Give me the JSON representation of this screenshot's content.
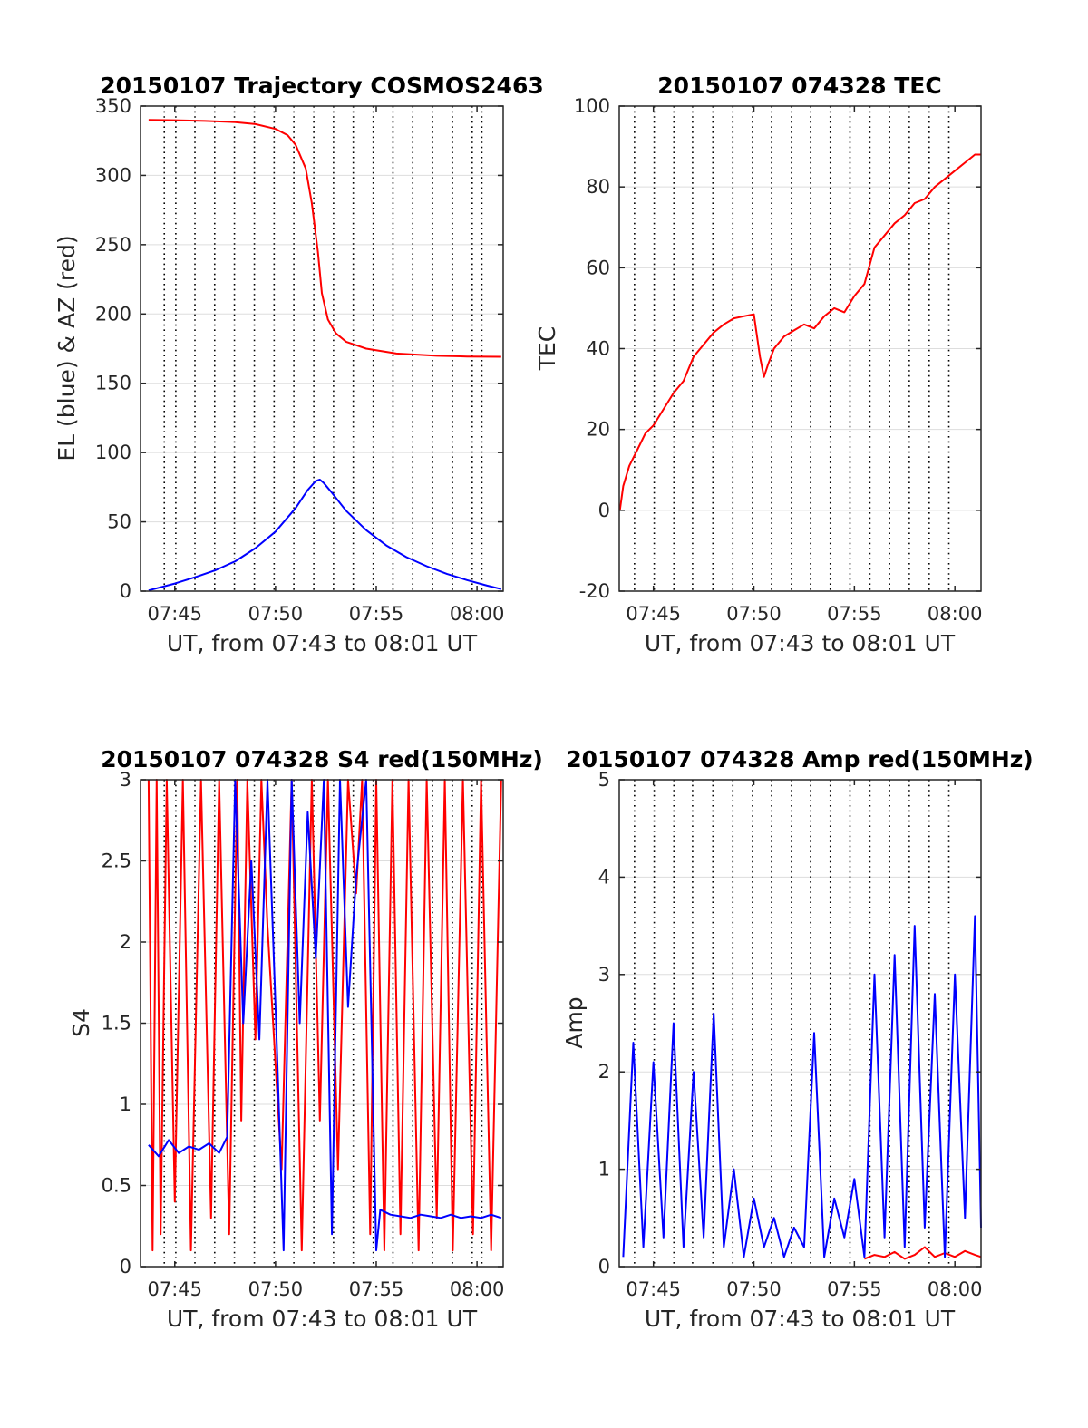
{
  "colors": {
    "red": "#ff0000",
    "blue": "#0000ff",
    "axis": "#262626",
    "grid": "#dddddd"
  },
  "chart_data": [
    {
      "type": "line",
      "title": "20150107 Trajectory COSMOS2463",
      "xlabel": "UT, from 07:43 to 08:01 UT",
      "ylabel": "EL (blue) & AZ (red)",
      "x_unit": "minutes after 07:43 UT",
      "xlim": [
        0.3,
        18.3
      ],
      "ylim": [
        0,
        350
      ],
      "x_ticks": [
        {
          "x": 2,
          "label": "07:45"
        },
        {
          "x": 7,
          "label": "07:50"
        },
        {
          "x": 12,
          "label": "07:55"
        },
        {
          "x": 17,
          "label": "08:00"
        }
      ],
      "y_ticks": [
        0,
        50,
        100,
        150,
        200,
        250,
        300,
        350
      ],
      "y_tick_labels": [
        "0",
        "50",
        "100",
        "150",
        "200",
        "250",
        "300",
        "350"
      ],
      "vlines": [
        1.48,
        2.05,
        3,
        3.98,
        4.96,
        5.95,
        6.93,
        7.91,
        8.9,
        9.88,
        10.86,
        11.85,
        12.83,
        13.81,
        14.79,
        15.78,
        16.76,
        17.24
      ],
      "grid": true,
      "series": [
        {
          "color": "red",
          "x": [
            0.7,
            2,
            3.5,
            5,
            6,
            7,
            7.6,
            8.0,
            8.5,
            8.8,
            9.1,
            9.3,
            9.6,
            10,
            10.5,
            11.5,
            13,
            15,
            16.5,
            18.2
          ],
          "y": [
            340,
            339.8,
            339.3,
            338.4,
            337,
            333.5,
            329,
            322,
            305,
            280,
            245,
            215,
            196,
            186,
            180,
            175,
            171.5,
            169.8,
            169.3,
            169.1
          ]
        },
        {
          "color": "blue",
          "x": [
            0.7,
            2,
            3,
            4,
            5,
            6,
            7,
            8,
            8.6,
            9.0,
            9.2,
            9.4,
            9.8,
            10.5,
            11.5,
            12.5,
            13.5,
            14.5,
            15.5,
            16.5,
            17.5,
            18.2
          ],
          "y": [
            0.5,
            5.5,
            10,
            15,
            21.5,
            31,
            43,
            60,
            73,
            79.5,
            80.5,
            78,
            71,
            58,
            44,
            33,
            24.5,
            18,
            12.5,
            8,
            4,
            1.5
          ]
        }
      ]
    },
    {
      "type": "line",
      "title": "20150107 074328 TEC",
      "xlabel": "UT, from 07:43 to 08:01 UT",
      "ylabel": "TEC",
      "x_unit": "minutes after 07:43 UT",
      "xlim": [
        0.3,
        18.3
      ],
      "ylim": [
        -20,
        100
      ],
      "x_ticks": [
        {
          "x": 2,
          "label": "07:45"
        },
        {
          "x": 7,
          "label": "07:50"
        },
        {
          "x": 12,
          "label": "07:55"
        },
        {
          "x": 17,
          "label": "08:00"
        }
      ],
      "y_ticks": [
        -20,
        0,
        20,
        40,
        60,
        80,
        100
      ],
      "y_tick_labels": [
        "-20",
        "0",
        "20",
        "40",
        "60",
        "80",
        "100"
      ],
      "vlines": [
        1.06,
        2.04,
        3.02,
        3.95,
        4.96,
        5.95,
        6.93,
        7.88,
        8.87,
        9.82,
        10.8,
        11.78,
        12.77,
        13.75,
        14.73,
        15.72,
        16.7
      ],
      "grid": true,
      "series": [
        {
          "color": "red",
          "x": [
            0.33,
            0.5,
            0.8,
            1.2,
            1.6,
            2.0,
            2.5,
            3.0,
            3.5,
            4.0,
            4.5,
            5.0,
            5.5,
            6.0,
            6.5,
            7.0,
            7.1,
            7.3,
            7.5,
            7.7,
            8.0,
            8.5,
            9.0,
            9.5,
            10.0,
            10.5,
            11.0,
            11.5,
            12.0,
            12.5,
            13.0,
            13.5,
            14.0,
            14.5,
            15.0,
            15.5,
            16.0,
            16.5,
            17.0,
            17.5,
            18.0,
            18.3
          ],
          "y": [
            0,
            6,
            11,
            15,
            19,
            21,
            25,
            29,
            32,
            38,
            41,
            44,
            46,
            47.5,
            48,
            48.5,
            45,
            38,
            33,
            36,
            40,
            43,
            44.5,
            46,
            45,
            48,
            50,
            49,
            53,
            56,
            65,
            68,
            71,
            73,
            76,
            77,
            80,
            82,
            84,
            86,
            88,
            88
          ]
        }
      ]
    },
    {
      "type": "line",
      "title": "20150107 074328 S4 red(150MHz)",
      "xlabel": "UT, from 07:43 to 08:01 UT",
      "ylabel": "S4",
      "x_unit": "minutes after 07:43 UT",
      "xlim": [
        0.3,
        18.3
      ],
      "ylim": [
        0,
        3
      ],
      "x_ticks": [
        {
          "x": 2,
          "label": "07:45"
        },
        {
          "x": 7,
          "label": "07:50"
        },
        {
          "x": 12,
          "label": "07:55"
        },
        {
          "x": 17,
          "label": "08:00"
        }
      ],
      "y_ticks": [
        0,
        0.5,
        1,
        1.5,
        2,
        2.5,
        3
      ],
      "y_tick_labels": [
        "0",
        "0.5",
        "1",
        "1.5",
        "2",
        "2.5",
        "3"
      ],
      "vlines": [
        1.48,
        2.05,
        3,
        3.98,
        4.96,
        5.95,
        6.93,
        7.91,
        8.9,
        9.88,
        10.86,
        11.85,
        12.83,
        13.81,
        14.79,
        15.78,
        16.76,
        17.24
      ],
      "grid": true,
      "series": [
        {
          "color": "red",
          "x": [
            0.7,
            0.9,
            1.1,
            1.3,
            1.6,
            2.0,
            2.4,
            2.8,
            3.3,
            3.8,
            4.2,
            4.7,
            5.1,
            5.3,
            5.6,
            6.0,
            6.3,
            6.6,
            7.3,
            7.8,
            8.3,
            8.8,
            9.2,
            9.6,
            10.1,
            10.6,
            11.0,
            11.3,
            11.7,
            12.0,
            12.4,
            12.8,
            13.2,
            13.6,
            14.1,
            14.5,
            15.0,
            15.4,
            15.8,
            16.3,
            16.8,
            17.2,
            17.7,
            18.2
          ],
          "y": [
            3,
            0.1,
            3,
            0.2,
            3,
            0.4,
            3,
            0.1,
            3,
            0.3,
            3,
            0.2,
            3,
            0.9,
            3,
            1.4,
            3,
            2.1,
            0.6,
            3,
            0.1,
            3,
            0.9,
            3,
            0.6,
            3,
            2.3,
            3,
            0.2,
            3,
            0.1,
            3,
            0.2,
            3,
            0.1,
            3,
            0.3,
            3,
            0.1,
            3,
            0.2,
            3,
            0.1,
            3
          ]
        },
        {
          "color": "blue",
          "x": [
            0.7,
            1.2,
            1.7,
            2.2,
            2.7,
            3.2,
            3.7,
            4.2,
            4.6,
            5.0,
            5.4,
            5.8,
            6.2,
            6.6,
            7.0,
            7.4,
            7.8,
            8.2,
            8.6,
            9.0,
            9.4,
            9.8,
            10.2,
            10.6,
            11.0,
            11.5,
            12.0,
            12.2,
            12.7,
            13.2,
            13.7,
            14.2,
            14.7,
            15.2,
            15.7,
            16.2,
            16.7,
            17.2,
            17.7,
            18.2
          ],
          "y": [
            0.75,
            0.68,
            0.78,
            0.7,
            0.74,
            0.72,
            0.76,
            0.7,
            0.8,
            3,
            1.5,
            2.5,
            1.4,
            3,
            1.6,
            0.1,
            3,
            1.5,
            2.8,
            1.9,
            3,
            0.2,
            3,
            1.6,
            2.4,
            3,
            0.1,
            0.35,
            0.32,
            0.31,
            0.3,
            0.32,
            0.31,
            0.3,
            0.32,
            0.3,
            0.31,
            0.3,
            0.32,
            0.3
          ]
        }
      ]
    },
    {
      "type": "line",
      "title": "20150107 074328 Amp red(150MHz)",
      "xlabel": "UT, from 07:43 to 08:01 UT",
      "ylabel": "Amp",
      "x_unit": "minutes after 07:43 UT",
      "xlim": [
        0.3,
        18.3
      ],
      "ylim": [
        0,
        5
      ],
      "x_ticks": [
        {
          "x": 2,
          "label": "07:45"
        },
        {
          "x": 7,
          "label": "07:50"
        },
        {
          "x": 12,
          "label": "07:55"
        },
        {
          "x": 17,
          "label": "08:00"
        }
      ],
      "y_ticks": [
        0,
        1,
        2,
        3,
        4,
        5
      ],
      "y_tick_labels": [
        "0",
        "1",
        "2",
        "3",
        "4",
        "5"
      ],
      "vlines": [
        1.06,
        2.04,
        3.02,
        3.95,
        4.96,
        5.95,
        6.93,
        7.88,
        8.87,
        9.82,
        10.8,
        11.78,
        12.77,
        13.75,
        14.73,
        15.72,
        16.7
      ],
      "grid": true,
      "series": [
        {
          "color": "red",
          "x": [
            12.5,
            13.0,
            13.5,
            14.0,
            14.5,
            15.0,
            15.5,
            16.0,
            16.5,
            17.0,
            17.5,
            18.0,
            18.3
          ],
          "y": [
            0.08,
            0.12,
            0.1,
            0.15,
            0.08,
            0.12,
            0.2,
            0.1,
            0.14,
            0.1,
            0.16,
            0.12,
            0.1
          ]
        },
        {
          "color": "blue",
          "x": [
            0.5,
            1.0,
            1.5,
            2.0,
            2.5,
            3.0,
            3.5,
            4.0,
            4.5,
            5.0,
            5.5,
            6.0,
            6.5,
            7.0,
            7.5,
            8.0,
            8.5,
            9.0,
            9.5,
            10.0,
            10.5,
            11.0,
            11.5,
            12.0,
            12.5,
            13.0,
            13.5,
            14.0,
            14.5,
            15.0,
            15.5,
            16.0,
            16.5,
            17.0,
            17.5,
            18.0,
            18.3
          ],
          "y": [
            0.1,
            2.3,
            0.2,
            2.1,
            0.3,
            2.5,
            0.2,
            2.0,
            0.3,
            2.6,
            0.2,
            1.0,
            0.1,
            0.7,
            0.2,
            0.5,
            0.1,
            0.4,
            0.2,
            2.4,
            0.1,
            0.7,
            0.3,
            0.9,
            0.1,
            3.0,
            0.3,
            3.2,
            0.2,
            3.5,
            0.4,
            2.8,
            0.1,
            3.0,
            0.5,
            3.6,
            0.4
          ]
        }
      ]
    }
  ]
}
